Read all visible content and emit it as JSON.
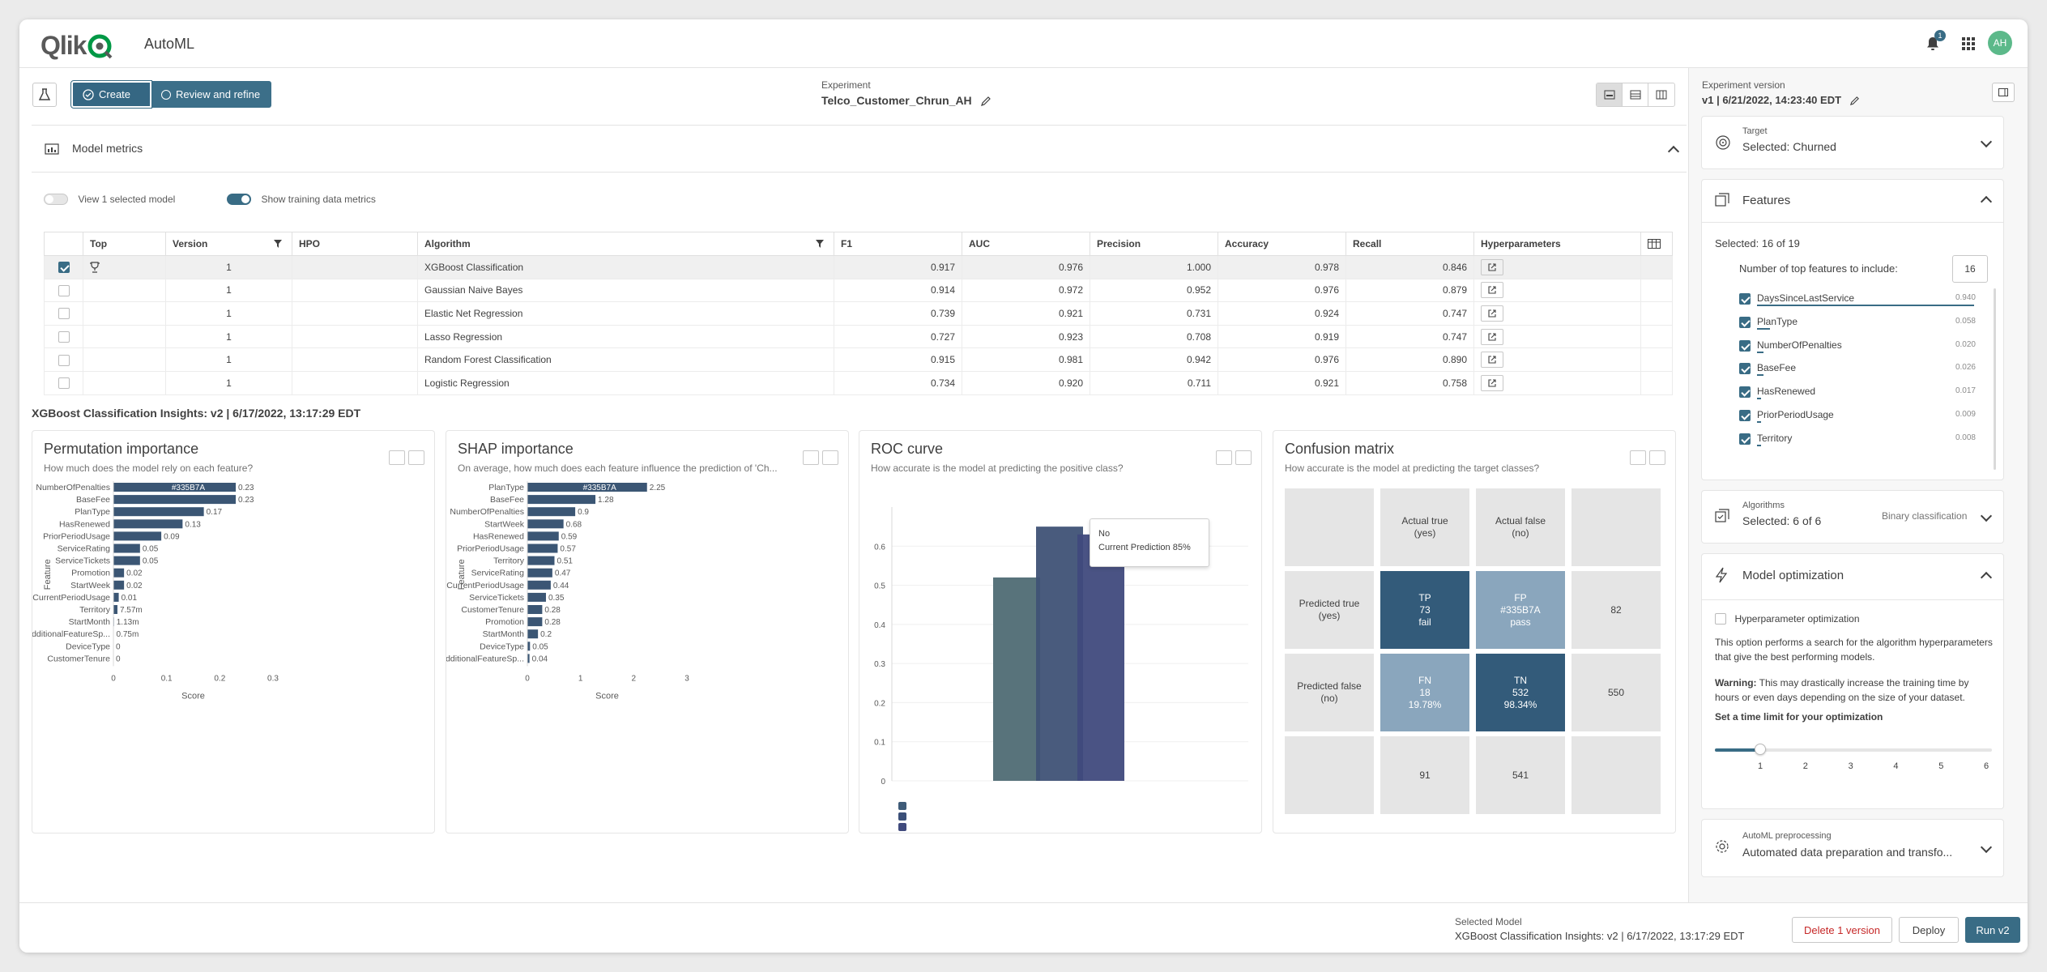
{
  "app": {
    "logo_text": "Qlik",
    "title": "AutoML"
  },
  "header": {
    "notification_count": "1",
    "avatar_initials": "AH"
  },
  "steps": {
    "create": "Create",
    "review": "Review and refine"
  },
  "experiment": {
    "label": "Experiment",
    "name": "Telco_Customer_Chrun_AH"
  },
  "metrics": {
    "section_title": "Model metrics",
    "view_selected_label": "View 1 selected model",
    "show_training_label": "Show training data metrics",
    "columns": [
      "Top",
      "Version",
      "HPO",
      "Algorithm",
      "F1",
      "AUC",
      "Precision",
      "Accuracy",
      "Recall",
      "Hyperparameters"
    ],
    "rows": [
      {
        "selected": true,
        "top": true,
        "version": "1",
        "hpo": "",
        "algorithm": "XGBoost Classification",
        "f1": "0.917",
        "auc": "0.976",
        "precision": "1.000",
        "accuracy": "0.978",
        "recall": "0.846"
      },
      {
        "selected": false,
        "top": false,
        "version": "1",
        "hpo": "",
        "algorithm": "Gaussian Naive Bayes",
        "f1": "0.914",
        "auc": "0.972",
        "precision": "0.952",
        "accuracy": "0.976",
        "recall": "0.879"
      },
      {
        "selected": false,
        "top": false,
        "version": "1",
        "hpo": "",
        "algorithm": "Elastic Net Regression",
        "f1": "0.739",
        "auc": "0.921",
        "precision": "0.731",
        "accuracy": "0.924",
        "recall": "0.747"
      },
      {
        "selected": false,
        "top": false,
        "version": "1",
        "hpo": "",
        "algorithm": "Lasso Regression",
        "f1": "0.727",
        "auc": "0.923",
        "precision": "0.708",
        "accuracy": "0.919",
        "recall": "0.747"
      },
      {
        "selected": false,
        "top": false,
        "version": "1",
        "hpo": "",
        "algorithm": "Random Forest Classification",
        "f1": "0.915",
        "auc": "0.981",
        "precision": "0.942",
        "accuracy": "0.976",
        "recall": "0.890"
      },
      {
        "selected": false,
        "top": false,
        "version": "1",
        "hpo": "",
        "algorithm": "Logistic Regression",
        "f1": "0.734",
        "auc": "0.920",
        "precision": "0.711",
        "accuracy": "0.921",
        "recall": "0.758"
      }
    ]
  },
  "insights": {
    "title": "XGBoost Classification Insights: v2 | 6/17/2022, 13:17:29 EDT"
  },
  "permutation": {
    "title": "Permutation importance",
    "subtitle": "How much does the model rely on each feature?",
    "ylabel": "Feature",
    "xlabel": "Score"
  },
  "shap": {
    "title": "SHAP importance",
    "subtitle": "On average, how much does each feature influence the prediction of 'Ch...",
    "ylabel": "Feature",
    "xlabel": "Score"
  },
  "roc": {
    "title": "ROC curve",
    "subtitle": "How accurate is the model at predicting the positive class?",
    "tooltip_line1": "No",
    "tooltip_line2": "Current Prediction 85%"
  },
  "confusion": {
    "title": "Confusion matrix",
    "subtitle": "How accurate is the model at predicting the target classes?",
    "col_true": "Actual true\n(yes)",
    "col_false": "Actual false\n(no)",
    "row_true": "Predicted true\n(yes)",
    "row_false": "Predicted false\n(no)",
    "tp": "TP\n73\nfail",
    "fp": "FP\n#335B7A\npass",
    "fn": "FN\n18\n19.78%",
    "tn": "TN\n532\n98.34%",
    "row_true_total": "82",
    "row_false_total": "550",
    "col_true_total": "91",
    "col_false_total": "541"
  },
  "chart_data": [
    {
      "type": "bar",
      "orientation": "horizontal",
      "title": "Permutation importance",
      "xlabel": "Score",
      "ylabel": "Feature",
      "xlim": [
        0,
        0.3
      ],
      "xticks": [
        "0",
        "0.1",
        "0.2",
        "0.3"
      ],
      "categories": [
        "NumberOfPenalties",
        "BaseFee",
        "PlanType",
        "HasRenewed",
        "PriorPeriodUsage",
        "ServiceRating",
        "ServiceTickets",
        "Promotion",
        "StartWeek",
        "CurrentPeriodUsage",
        "Territory",
        "StartMonth",
        "AdditionalFeatureSp...",
        "DeviceType",
        "CustomerTenure"
      ],
      "values": [
        0.23,
        0.23,
        0.17,
        0.13,
        0.09,
        0.05,
        0.05,
        0.02,
        0.02,
        0.01,
        0.00757,
        0.00113,
        0.00075,
        0,
        0
      ],
      "labels": [
        "0.23",
        "0.23",
        "0.17",
        "0.13",
        "0.09",
        "0.05",
        "0.05",
        "0.02",
        "0.02",
        "0.01",
        "7.57m",
        "1.13m",
        "0.75m",
        "0",
        "0"
      ],
      "highlight_label": "#335B7A",
      "color": "#3b5674"
    },
    {
      "type": "bar",
      "orientation": "horizontal",
      "title": "SHAP importance",
      "xlabel": "Score",
      "ylabel": "Feature",
      "xlim": [
        0,
        3
      ],
      "xticks": [
        "0",
        "1",
        "2",
        "3"
      ],
      "categories": [
        "PlanType",
        "BaseFee",
        "NumberOfPenalties",
        "StartWeek",
        "HasRenewed",
        "PriorPeriodUsage",
        "Territory",
        "ServiceRating",
        "CurrentPeriodUsage",
        "ServiceTickets",
        "CustomerTenure",
        "Promotion",
        "StartMonth",
        "DeviceType",
        "AdditionalFeatureSp..."
      ],
      "values": [
        2.25,
        1.28,
        0.9,
        0.68,
        0.59,
        0.57,
        0.51,
        0.47,
        0.44,
        0.35,
        0.28,
        0.28,
        0.2,
        0.05,
        0.04
      ],
      "labels": [
        "2.25",
        "1.28",
        "0.9",
        "0.68",
        "0.59",
        "0.57",
        "0.51",
        "0.47",
        "0.44",
        "0.35",
        "0.28",
        "0.28",
        "0.2",
        "0.05",
        "0.04"
      ],
      "highlight_label": "#335B7A",
      "color": "#3b5674"
    },
    {
      "type": "bar",
      "title": "ROC curve",
      "ylim": [
        0,
        0.7
      ],
      "yticks": [
        "0",
        "0.1",
        "0.2",
        "0.3",
        "0.4",
        "0.5",
        "0.6"
      ],
      "series": [
        {
          "value": 0.52,
          "color": "#4f6b74"
        },
        {
          "value": 0.65,
          "color": "#3f5276"
        },
        {
          "value": 0.63,
          "color": "#404a7d"
        }
      ],
      "legend_colors": [
        "#3f5b78",
        "#3b4f78",
        "#404a7d"
      ]
    }
  ],
  "features": {
    "title": "Features",
    "selected": "Selected: 16 of 19",
    "top_label": "Number of top features to include:",
    "top_value": "16",
    "items": [
      {
        "name": "DaysSinceLastService",
        "value": "0.940",
        "frac": 1.0
      },
      {
        "name": "PlanType",
        "value": "0.058",
        "frac": 0.06
      },
      {
        "name": "NumberOfPenalties",
        "value": "0.020",
        "frac": 0.03
      },
      {
        "name": "BaseFee",
        "value": "0.026",
        "frac": 0.03
      },
      {
        "name": "HasRenewed",
        "value": "0.017",
        "frac": 0.02
      },
      {
        "name": "PriorPeriodUsage",
        "value": "0.009",
        "frac": 0.01
      },
      {
        "name": "Territory",
        "value": "0.008",
        "frac": 0.01
      }
    ]
  },
  "right": {
    "version_label": "Experiment version",
    "version_value": "v1 | 6/21/2022, 14:23:40 EDT",
    "target_label": "Target",
    "target_value": "Selected: Churned",
    "alg_label": "Algorithms",
    "alg_value": "Selected: 6 of 6",
    "alg_type": "Binary classification",
    "opt_title": "Model optimization",
    "opt_checkbox": "Hyperparameter optimization",
    "opt_desc": "This option performs a search for the algorithm hyperparameters that give the best performing models.",
    "warn_bold": "Warning:",
    "warn_text": "This may drastically increase the training time by hours or even days depending on the size of your dataset.",
    "time_label": "Set a time limit for your optimization",
    "slider_ticks": [
      "1",
      "2",
      "3",
      "4",
      "5",
      "6"
    ],
    "slider_value": 1,
    "prep_label": "AutoML preprocessing",
    "prep_value": "Automated data preparation and transfo..."
  },
  "footer": {
    "selected_label": "Selected Model",
    "selected_value": "XGBoost Classification Insights: v2 | 6/17/2022, 13:17:29 EDT",
    "delete": "Delete 1 version",
    "deploy": "Deploy",
    "run": "Run v2"
  },
  "colors": {
    "accent": "#396c85",
    "bar": "#3b5674",
    "danger": "#c62828"
  }
}
